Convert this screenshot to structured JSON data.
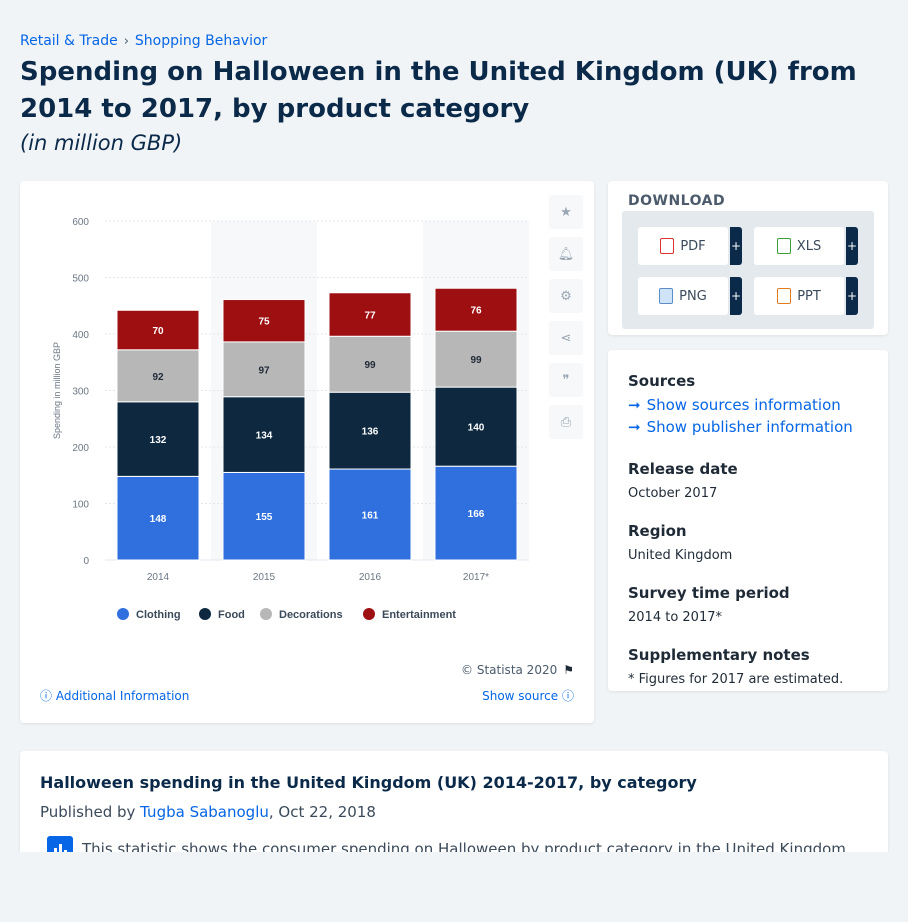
{
  "breadcrumb": {
    "item1": "Retail & Trade",
    "sep": "›",
    "item2": "Shopping Behavior"
  },
  "title": "Spending on Halloween in the United Kingdom (UK) from 2014 to 2017, by product category",
  "subtitle": "(in million GBP)",
  "chart_data": {
    "type": "bar",
    "stacked": true,
    "categories": [
      "2014",
      "2015",
      "2016",
      "2017*"
    ],
    "series": [
      {
        "name": "Clothing",
        "values": [
          148,
          155,
          161,
          166
        ],
        "color": "#2f6fde"
      },
      {
        "name": "Food",
        "values": [
          132,
          134,
          136,
          140
        ],
        "color": "#0e2840"
      },
      {
        "name": "Decorations",
        "values": [
          92,
          97,
          99,
          99
        ],
        "color": "#b7b7b7"
      },
      {
        "name": "Entertainment",
        "values": [
          70,
          75,
          77,
          76
        ],
        "color": "#9e0f12"
      }
    ],
    "ylabel": "Spending in million GBP",
    "xlabel": "",
    "ylim": [
      0,
      600
    ],
    "yticks": [
      0,
      100,
      200,
      300,
      400,
      500,
      600
    ],
    "grid": true,
    "legend_placement": "bottom"
  },
  "copyright": "© Statista 2020",
  "additional_info": "Additional Information",
  "show_source": "Show source",
  "download": {
    "title": "DOWNLOAD",
    "pdf": "PDF",
    "xls": "XLS",
    "png": "PNG",
    "ppt": "PPT",
    "plus": "+"
  },
  "meta": {
    "sources_label": "Sources",
    "show_sources": "Show sources information",
    "show_publisher": "Show publisher information",
    "release_label": "Release date",
    "release_value": "October 2017",
    "region_label": "Region",
    "region_value": "United Kingdom",
    "survey_label": "Survey time period",
    "survey_value": "2014 to 2017*",
    "notes_label": "Supplementary notes",
    "notes_value": "* Figures for 2017 are estimated."
  },
  "description": {
    "title": "Halloween spending in the United Kingdom (UK) 2014-2017, by category",
    "published_prefix": "Published by",
    "author": "Tugba Sabanoglu",
    "date": ", Oct 22, 2018",
    "text": "This statistic shows the consumer spending on Halloween by product category in the United Kingdom"
  },
  "colors": {
    "accent": "#0666e5",
    "dark": "#0b2a4a"
  }
}
